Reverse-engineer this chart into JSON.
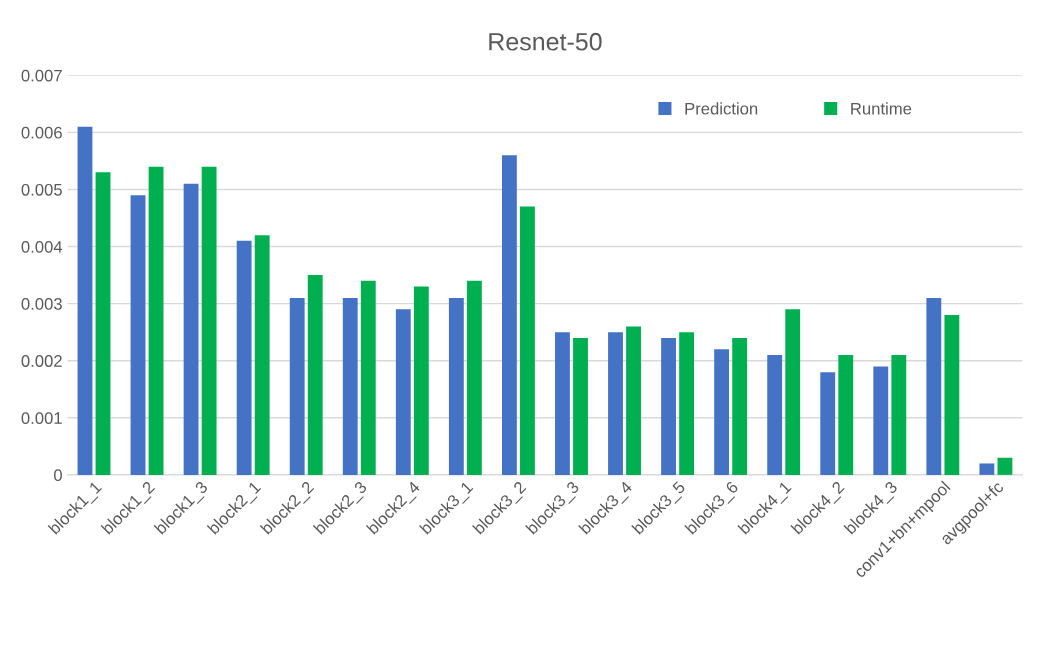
{
  "chart_data": {
    "type": "bar",
    "title": "Resnet-50",
    "categories": [
      "block1_1",
      "block1_2",
      "block1_3",
      "block2_1",
      "block2_2",
      "block2_3",
      "block2_4",
      "block3_1",
      "block3_2",
      "block3_3",
      "block3_4",
      "block3_5",
      "block3_6",
      "block4_1",
      "block4_2",
      "block4_3",
      "conv1+bn+mpool",
      "avgpool+fc"
    ],
    "series": [
      {
        "name": "Prediction",
        "color": "#4472c4",
        "values": [
          0.0061,
          0.0049,
          0.0051,
          0.0041,
          0.0031,
          0.0031,
          0.0029,
          0.0031,
          0.0056,
          0.0025,
          0.0025,
          0.0024,
          0.0022,
          0.0021,
          0.0018,
          0.0019,
          0.0031,
          0.0002
        ]
      },
      {
        "name": "Runtime",
        "color": "#00b050",
        "values": [
          0.0053,
          0.0054,
          0.0054,
          0.0042,
          0.0035,
          0.0034,
          0.0033,
          0.0034,
          0.0047,
          0.0024,
          0.0026,
          0.0025,
          0.0024,
          0.0029,
          0.0021,
          0.0021,
          0.0028,
          0.0003
        ]
      }
    ],
    "ylim": [
      0,
      0.007
    ],
    "yticks": [
      {
        "value": 0,
        "label": "0"
      },
      0.001,
      0.002,
      0.003,
      0.004,
      0.005,
      0.006,
      0.007
    ],
    "grid": "y",
    "legend": "top right"
  }
}
